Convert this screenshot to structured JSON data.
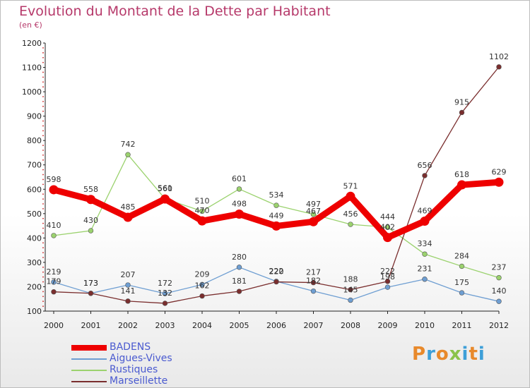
{
  "title": "Evolution du Montant de la Dette par Habitant",
  "subtitle": "(en €)",
  "logo": {
    "text": "Proxiti",
    "colors": [
      "#e8892b",
      "#3d9fd8",
      "#e8892b",
      "#8bc34a",
      "#3d9fd8",
      "#e8892b",
      "#3d9fd8"
    ]
  },
  "chart_data": {
    "type": "line",
    "title": "Evolution du Montant de la Dette par Habitant",
    "subtitle": "(en €)",
    "x": [
      "2000",
      "2001",
      "2002",
      "2003",
      "2004",
      "2005",
      "2006",
      "2007",
      "2008",
      "2009",
      "2010",
      "2011",
      "2012"
    ],
    "yticks": [
      100,
      200,
      300,
      400,
      500,
      600,
      700,
      800,
      900,
      1000,
      1100,
      1200
    ],
    "ylim": [
      100,
      1200
    ],
    "grid": false,
    "legend_placement": "bottom-left",
    "series": [
      {
        "name": "BADENS",
        "color": "#ee0000",
        "values": [
          598,
          558,
          485,
          560,
          470,
          498,
          449,
          467,
          571,
          402,
          469,
          618,
          629
        ],
        "labels": [
          "598",
          "558",
          "485",
          "560",
          "470",
          "498",
          "449",
          "467",
          "571",
          "402",
          "469",
          "618",
          "629"
        ]
      },
      {
        "name": "Aigues-Vives",
        "color": "#6e9ed2",
        "values": [
          219,
          173,
          207,
          172,
          209,
          280,
          222,
          182,
          145,
          198,
          231,
          175,
          140
        ],
        "labels": [
          "219",
          "173",
          "207",
          "172",
          "209",
          "280",
          "222",
          "182",
          "145",
          "198",
          "231",
          "175",
          "140"
        ]
      },
      {
        "name": "Rustiques",
        "color": "#9bd26e",
        "values": [
          410,
          430,
          742,
          561,
          510,
          601,
          534,
          497,
          456,
          444,
          334,
          284,
          237
        ],
        "labels": [
          "410",
          "430",
          "742",
          "561",
          "510",
          "601",
          "534",
          "497",
          "456",
          "444",
          "334",
          "284",
          "237"
        ]
      },
      {
        "name": "Marseillette",
        "color": "#7a2e2e",
        "values": [
          179,
          173,
          141,
          132,
          162,
          181,
          220,
          217,
          188,
          222,
          656,
          915,
          1102
        ],
        "labels": [
          "179",
          "173",
          "141",
          "132",
          "162",
          "181",
          "220",
          "217",
          "188",
          "222",
          "656",
          "915",
          "1102"
        ]
      }
    ]
  }
}
